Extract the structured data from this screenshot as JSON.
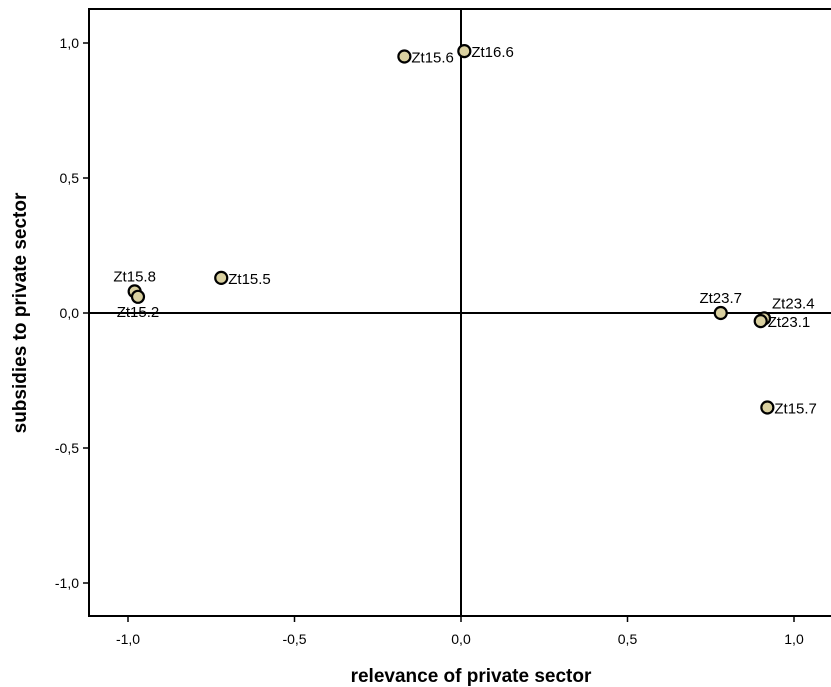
{
  "chart_data": {
    "type": "scatter",
    "title": "",
    "xlabel": "relevance of private sector",
    "ylabel": "subsidies to private sector",
    "xlim": [
      -1.1,
      1.1
    ],
    "ylim": [
      -1.1,
      1.1
    ],
    "x_ticks": [
      -1.0,
      -0.5,
      0.0,
      0.5,
      1.0
    ],
    "y_ticks": [
      -1.0,
      -0.5,
      0.0,
      0.5,
      1.0
    ],
    "x_tick_labels": [
      "-1,0",
      "-0,5",
      "0,0",
      "0,5",
      "1,0"
    ],
    "y_tick_labels": [
      "-1,0",
      "-0,5",
      "0,0",
      "0,5",
      "1,0"
    ],
    "grid": false,
    "reference_lines": {
      "x": 0.0,
      "y": 0.0
    },
    "marker_fill": "#d9d0a0",
    "marker_stroke": "#000000",
    "points": [
      {
        "label": "Zt16.6",
        "x": 0.01,
        "y": 0.97,
        "label_pos": "right"
      },
      {
        "label": "Zt15.6",
        "x": -0.17,
        "y": 0.95,
        "label_pos": "right"
      },
      {
        "label": "Zt15.8",
        "x": -0.98,
        "y": 0.08,
        "label_pos": "above"
      },
      {
        "label": "Zt15.2",
        "x": -0.97,
        "y": 0.06,
        "label_pos": "below"
      },
      {
        "label": "Zt15.5",
        "x": -0.72,
        "y": 0.13,
        "label_pos": "right"
      },
      {
        "label": "Zt23.7",
        "x": 0.78,
        "y": 0.0,
        "label_pos": "above"
      },
      {
        "label": "Zt23.4",
        "x": 0.91,
        "y": -0.02,
        "label_pos": "above-right"
      },
      {
        "label": "Zt23.1",
        "x": 0.9,
        "y": -0.03,
        "label_pos": "right"
      },
      {
        "label": "Zt15.7",
        "x": 0.92,
        "y": -0.35,
        "label_pos": "right"
      }
    ]
  }
}
